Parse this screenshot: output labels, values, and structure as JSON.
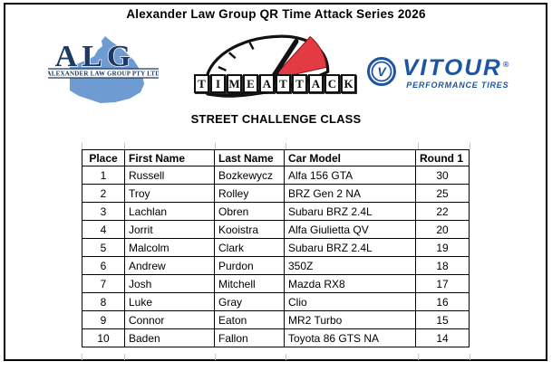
{
  "page": {
    "title": "Alexander Law Group QR Time Attack Series 2026",
    "subtitle": "STREET CHALLENGE CLASS"
  },
  "colors": {
    "navy": "#1f3864",
    "map_blue": "#6f9bd3",
    "vitour_blue": "#1d55a5",
    "attack_red": "#e23b44",
    "gauge_ink": "#111111"
  },
  "logos": {
    "alg": {
      "acronym": "ALG",
      "band_text": "ALEXANDER LAW GROUP PTY LTD"
    },
    "timeattack": {
      "letters": [
        "T",
        "I",
        "M",
        "E",
        "A",
        "T",
        "T",
        "A",
        "C",
        "K"
      ]
    },
    "vitour": {
      "badge_letter": "V",
      "brand": "VITOUR",
      "registered": "®",
      "tagline": "PERFORMANCE TIRES"
    }
  },
  "table": {
    "headers": [
      "Place",
      "First Name",
      "Last Name",
      "Car Model",
      "Round 1"
    ],
    "rows": [
      [
        "1",
        "Russell",
        "Bozkewycz",
        "Alfa 156 GTA",
        "30"
      ],
      [
        "2",
        "Troy",
        "Rolley",
        "BRZ Gen 2 NA",
        "25"
      ],
      [
        "3",
        "Lachlan",
        "Obren",
        "Subaru BRZ 2.4L",
        "22"
      ],
      [
        "4",
        "Jorrit",
        "Kooistra",
        "Alfa Giulietta QV",
        "20"
      ],
      [
        "5",
        "Malcolm",
        "Clark",
        "Subaru BRZ 2.4L",
        "19"
      ],
      [
        "6",
        "Andrew",
        "Purdon",
        "350Z",
        "18"
      ],
      [
        "7",
        "Josh",
        "Mitchell",
        "Mazda RX8",
        "17"
      ],
      [
        "8",
        "Luke",
        "Gray",
        "Clio",
        "16"
      ],
      [
        "9",
        "Connor",
        "Eaton",
        "MR2 Turbo",
        "15"
      ],
      [
        "10",
        "Baden",
        "Fallon",
        "Toyota 86 GTS NA",
        "14"
      ]
    ]
  }
}
